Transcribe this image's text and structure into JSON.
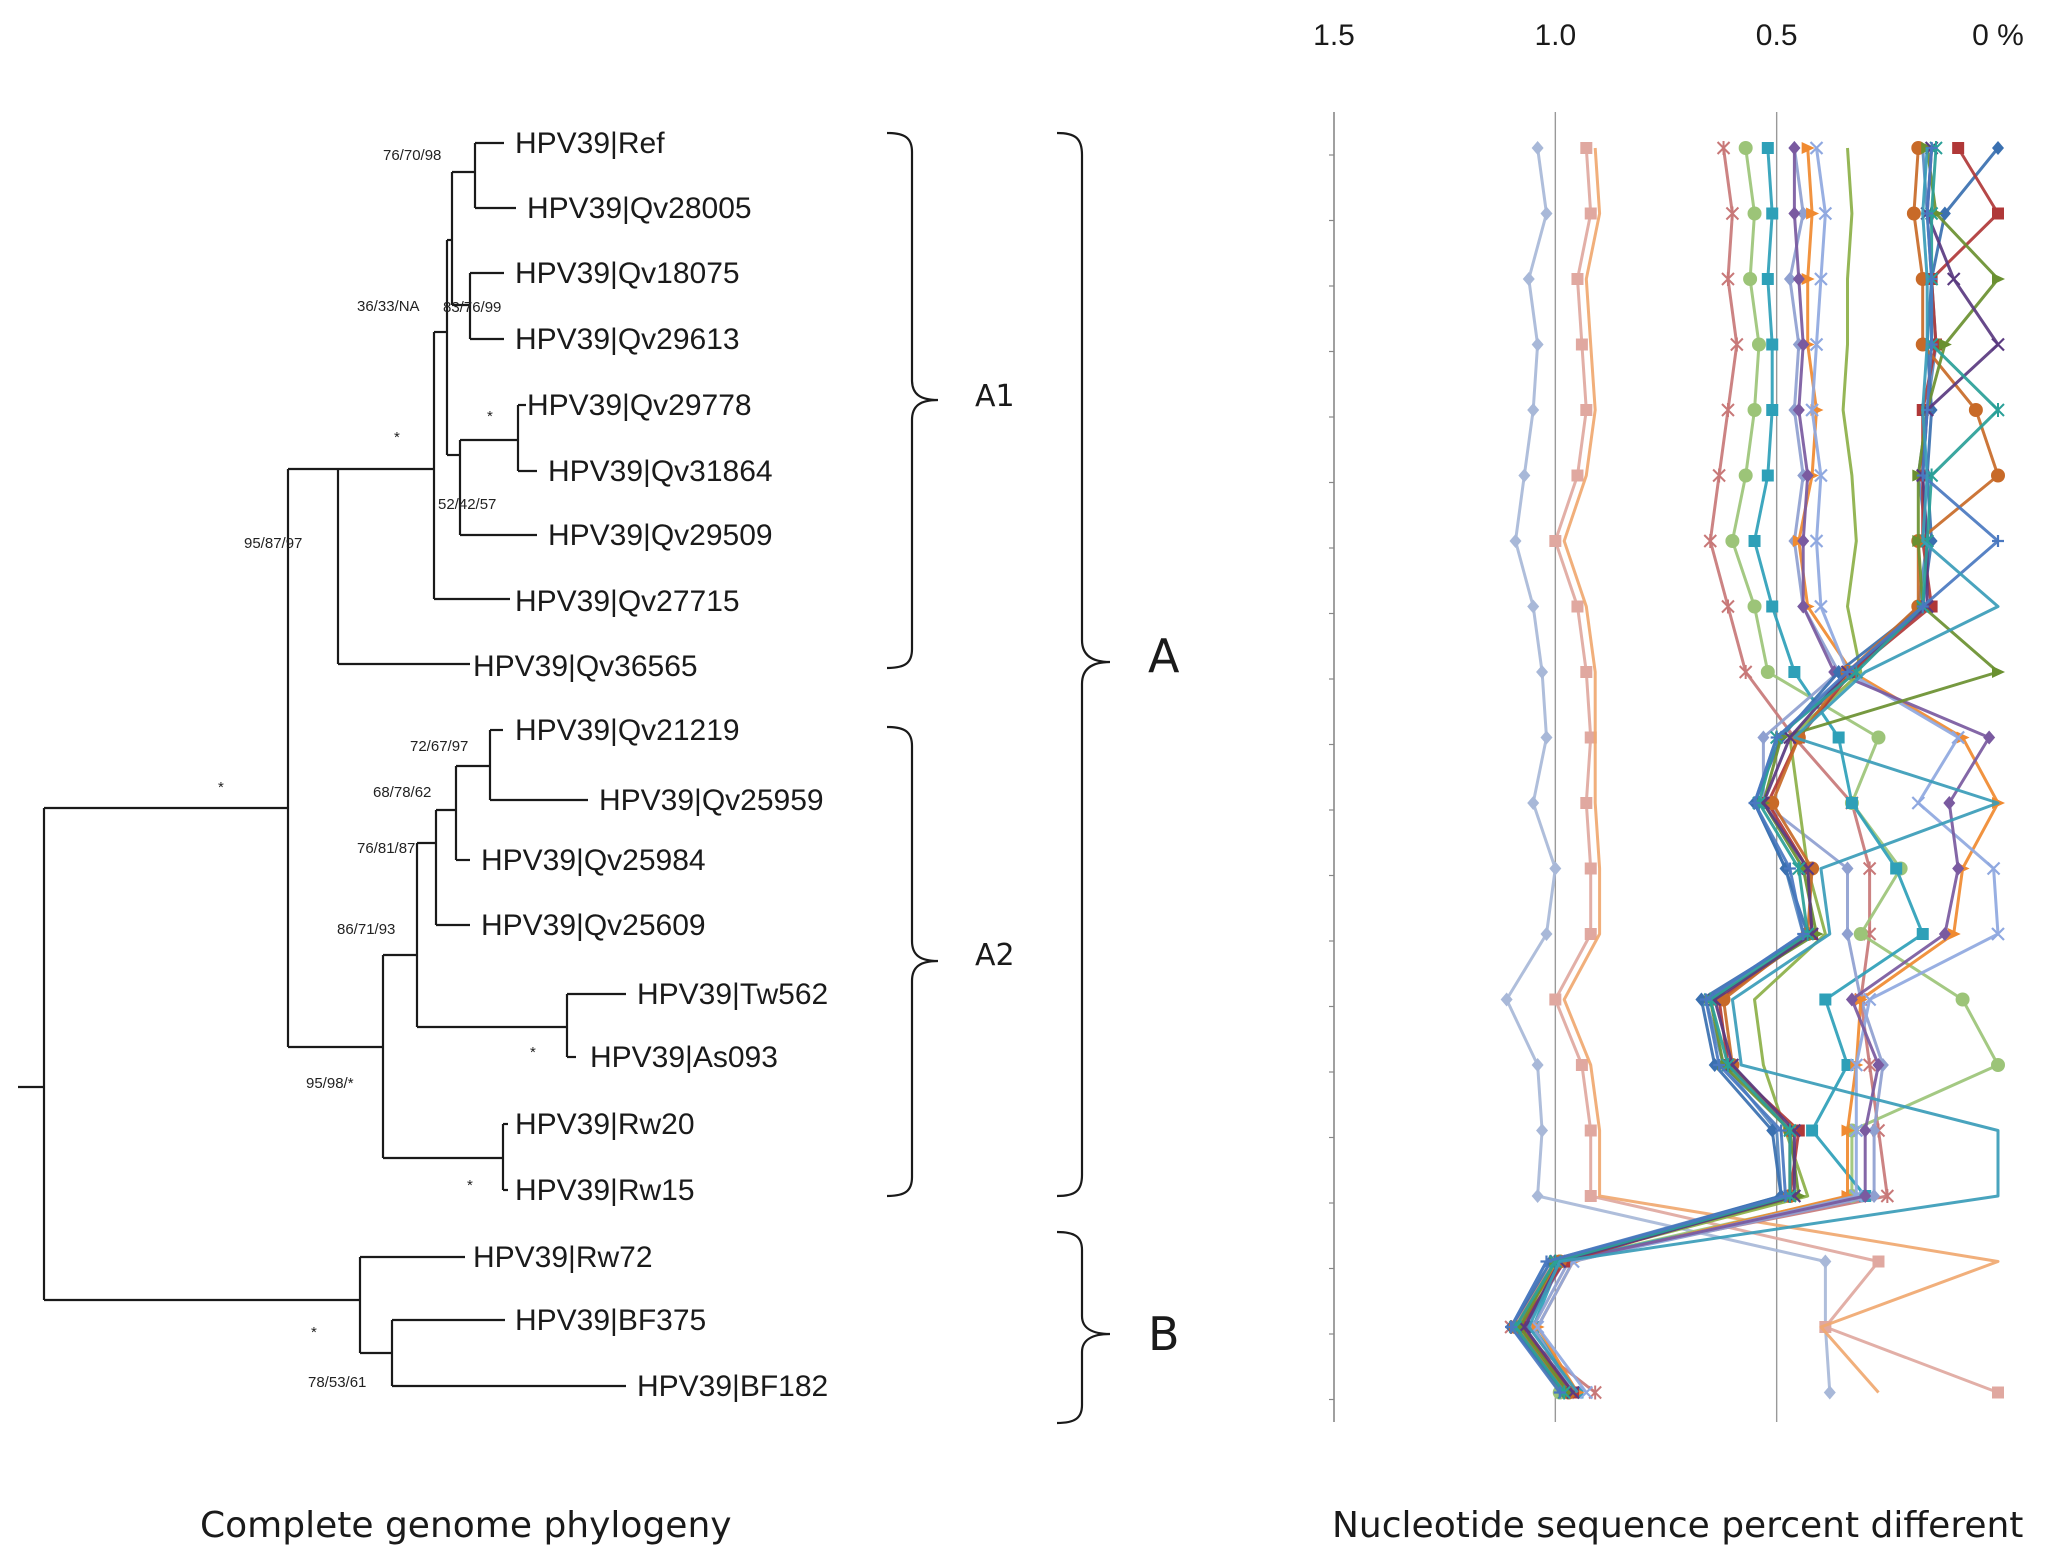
{
  "tree": {
    "caption": "Complete genome phylogeny",
    "leaves": [
      "HPV39|Ref",
      "HPV39|Qv28005",
      "HPV39|Qv18075",
      "HPV39|Qv29613",
      "HPV39|Qv29778",
      "HPV39|Qv31864",
      "HPV39|Qv29509",
      "HPV39|Qv27715",
      "HPV39|Qv36565",
      "HPV39|Qv21219",
      "HPV39|Qv25959",
      "HPV39|Qv25984",
      "HPV39|Qv25609",
      "HPV39|Tw562",
      "HPV39|As093",
      "HPV39|Rw20",
      "HPV39|Rw15",
      "HPV39|Rw72",
      "HPV39|BF375",
      "HPV39|BF182"
    ],
    "supports": [
      "76/70/98",
      "36/33/NA",
      "83/76/99",
      "*",
      "52/42/57",
      "*",
      "95/87/97",
      "*",
      "72/67/97",
      "68/78/62",
      "76/81/87",
      "86/71/93",
      "*",
      "95/98/*",
      "*",
      "*",
      "78/53/61"
    ],
    "clades": {
      "a1": "A1",
      "a2": "A2",
      "a": "A",
      "b": "B"
    }
  },
  "chart_data": {
    "type": "line",
    "caption": "Nucleotide sequence percent different",
    "x_axis": {
      "ticks": [
        "1.5",
        "1.0",
        "0.5",
        "0 %"
      ],
      "range": [
        1.5,
        0
      ],
      "reversed": true
    },
    "y_categories": [
      "HPV39|Ref",
      "HPV39|Qv28005",
      "HPV39|Qv18075",
      "HPV39|Qv29613",
      "HPV39|Qv29778",
      "HPV39|Qv31864",
      "HPV39|Qv29509",
      "HPV39|Qv27715",
      "HPV39|Qv36565",
      "HPV39|Qv21219",
      "HPV39|Qv25959",
      "HPV39|Qv25984",
      "HPV39|Qv25609",
      "HPV39|Tw562",
      "HPV39|As093",
      "HPV39|Rw20",
      "HPV39|Rw15",
      "HPV39|Rw72",
      "HPV39|BF375",
      "HPV39|BF182"
    ],
    "grid": "vertical at 1.0 and 0.5",
    "series": [
      {
        "color": "#a8b8d8",
        "marker": "diamond",
        "values": [
          1.04,
          1.02,
          1.06,
          1.04,
          1.05,
          1.07,
          1.09,
          1.05,
          1.03,
          1.02,
          1.05,
          1.0,
          1.02,
          1.11,
          1.04,
          1.03,
          1.04,
          0.39,
          0.39,
          0.38
        ]
      },
      {
        "color": "#e0a8a0",
        "marker": "square",
        "values": [
          0.93,
          0.92,
          0.95,
          0.94,
          0.93,
          0.95,
          1.0,
          0.95,
          0.93,
          0.92,
          0.93,
          0.92,
          0.92,
          1.0,
          0.94,
          0.92,
          0.92,
          0.27,
          0.39,
          0.0
        ]
      },
      {
        "color": "#f0a870",
        "marker": "none",
        "values": [
          0.91,
          0.9,
          0.93,
          0.92,
          0.91,
          0.93,
          0.98,
          0.93,
          0.91,
          0.91,
          0.91,
          0.9,
          0.9,
          0.98,
          0.92,
          0.9,
          0.9,
          0.0,
          0.4,
          0.27
        ]
      },
      {
        "color": "#c87878",
        "marker": "star",
        "values": [
          0.62,
          0.6,
          0.61,
          0.59,
          0.61,
          0.63,
          0.65,
          0.61,
          0.57,
          0.46,
          0.33,
          0.29,
          0.29,
          0.31,
          0.29,
          0.27,
          0.25,
          1.0,
          1.1,
          0.91
        ]
      },
      {
        "color": "#9cc478",
        "marker": "circle",
        "values": [
          0.57,
          0.55,
          0.56,
          0.54,
          0.55,
          0.57,
          0.6,
          0.55,
          0.52,
          0.27,
          0.33,
          0.22,
          0.31,
          0.08,
          0.0,
          0.33,
          0.33,
          0.99,
          1.08,
          0.99
        ]
      },
      {
        "color": "#2ea0b8",
        "marker": "square",
        "values": [
          0.52,
          0.51,
          0.52,
          0.51,
          0.51,
          0.52,
          0.55,
          0.51,
          0.46,
          0.36,
          0.33,
          0.23,
          0.17,
          0.39,
          0.34,
          0.42,
          0.3,
          0.99,
          1.05,
          0.95
        ]
      },
      {
        "color": "#8fa0d0",
        "marker": "diamond",
        "values": [
          0.46,
          0.44,
          0.47,
          0.45,
          0.46,
          0.44,
          0.46,
          0.44,
          0.36,
          0.53,
          0.53,
          0.34,
          0.34,
          0.31,
          0.26,
          0.28,
          0.28,
          0.97,
          1.05,
          0.96
        ]
      },
      {
        "color": "#f08a30",
        "marker": "triangle",
        "values": [
          0.43,
          0.42,
          0.43,
          0.43,
          0.41,
          0.42,
          0.45,
          0.43,
          0.33,
          0.08,
          0.0,
          0.08,
          0.1,
          0.31,
          0.32,
          0.34,
          0.34,
          0.96,
          1.04,
          0.95
        ]
      },
      {
        "color": "#8fa8e0",
        "marker": "x",
        "values": [
          0.41,
          0.39,
          0.4,
          0.41,
          0.42,
          0.4,
          0.41,
          0.4,
          0.34,
          0.09,
          0.18,
          0.01,
          0.0,
          0.29,
          0.32,
          0.32,
          0.32,
          0.96,
          1.04,
          0.93
        ]
      },
      {
        "color": "#7a5aa0",
        "marker": "diamond",
        "values": [
          0.46,
          0.46,
          0.45,
          0.44,
          0.45,
          0.43,
          0.44,
          0.44,
          0.37,
          0.02,
          0.11,
          0.09,
          0.12,
          0.33,
          0.27,
          0.3,
          0.3,
          0.98,
          1.07,
          0.97
        ]
      },
      {
        "color": "#8cb048",
        "marker": "none",
        "values": [
          0.34,
          0.33,
          0.34,
          0.34,
          0.35,
          0.33,
          0.32,
          0.34,
          0.31,
          0.47,
          0.45,
          0.43,
          0.39,
          0.55,
          0.53,
          0.48,
          0.43,
          1.0,
          1.09,
          0.99
        ]
      },
      {
        "color": "#5a8ac0",
        "marker": "none",
        "values": [
          0.17,
          0.16,
          0.15,
          0.14,
          0.16,
          0.18,
          0.16,
          0.18,
          0.33,
          0.5,
          0.55,
          0.48,
          0.44,
          0.66,
          0.62,
          0.5,
          0.49,
          1.02,
          1.1,
          0.97
        ]
      },
      {
        "color": "#3a70b0",
        "marker": "diamond",
        "values": [
          0.0,
          0.12,
          0.15,
          0.16,
          0.15,
          0.16,
          0.15,
          0.17,
          0.36,
          0.49,
          0.55,
          0.48,
          0.43,
          0.67,
          0.64,
          0.51,
          0.49,
          1.01,
          1.1,
          0.98
        ]
      },
      {
        "color": "#b03838",
        "marker": "square",
        "values": [
          0.09,
          0.0,
          0.15,
          0.14,
          0.17,
          0.17,
          0.17,
          0.15,
          0.33,
          0.45,
          0.52,
          0.43,
          0.42,
          0.63,
          0.61,
          0.45,
          0.47,
          0.98,
          1.08,
          0.96
        ]
      },
      {
        "color": "#c86a28",
        "marker": "circle",
        "values": [
          0.18,
          0.19,
          0.17,
          0.17,
          0.05,
          0.0,
          0.18,
          0.18,
          0.34,
          0.45,
          0.51,
          0.42,
          0.43,
          0.62,
          0.6,
          0.47,
          0.47,
          0.99,
          1.09,
          0.97
        ]
      },
      {
        "color": "#6a9030",
        "marker": "triangle",
        "values": [
          0.16,
          0.14,
          0.0,
          0.12,
          0.16,
          0.18,
          0.18,
          0.17,
          0.0,
          0.49,
          0.53,
          0.44,
          0.41,
          0.65,
          0.62,
          0.47,
          0.45,
          1.0,
          1.08,
          0.97
        ]
      },
      {
        "color": "#5a3a80",
        "marker": "x",
        "values": [
          0.15,
          0.16,
          0.1,
          0.0,
          0.16,
          0.17,
          0.16,
          0.16,
          0.34,
          0.47,
          0.53,
          0.43,
          0.42,
          0.64,
          0.6,
          0.46,
          0.46,
          0.99,
          1.07,
          0.96
        ]
      },
      {
        "color": "#2aa098",
        "marker": "star",
        "values": [
          0.14,
          0.15,
          0.15,
          0.15,
          0.0,
          0.15,
          0.16,
          0.17,
          0.32,
          0.5,
          0.54,
          0.45,
          0.43,
          0.65,
          0.61,
          0.47,
          0.47,
          1.0,
          1.09,
          0.98
        ]
      },
      {
        "color": "#4a78c0",
        "marker": "plus",
        "values": [
          0.15,
          0.16,
          0.15,
          0.15,
          0.16,
          0.17,
          0.0,
          0.17,
          0.34,
          0.5,
          0.55,
          0.47,
          0.44,
          0.66,
          0.63,
          0.49,
          0.48,
          1.02,
          1.1,
          0.99
        ]
      },
      {
        "color": "#3a9cb8",
        "marker": "none",
        "values": [
          0.16,
          0.17,
          0.16,
          0.16,
          0.17,
          0.16,
          0.17,
          0.0,
          0.3,
          0.46,
          0.0,
          0.4,
          0.38,
          0.6,
          0.58,
          0.0,
          0.0,
          0.99,
          1.06,
          0.95
        ]
      }
    ]
  }
}
